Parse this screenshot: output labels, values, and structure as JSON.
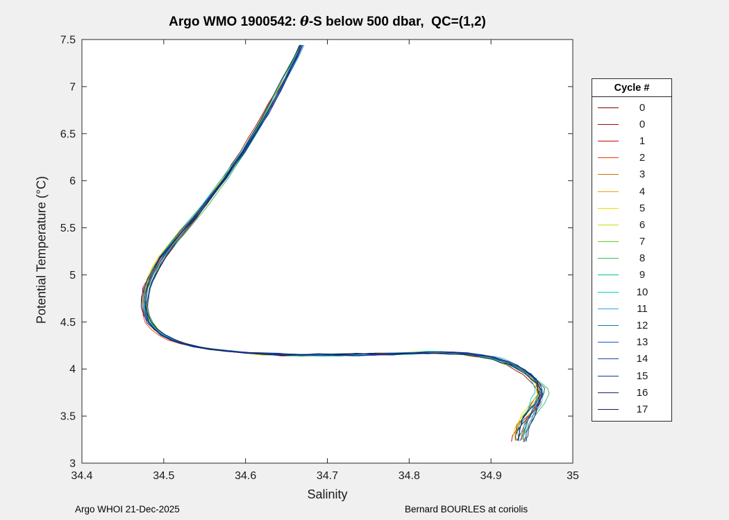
{
  "window": {
    "background": "#f0f0f0",
    "plot_background": "#ffffff"
  },
  "title_parts": {
    "prefix": "Argo WMO 1900542: ",
    "theta": "θ",
    "suffix": "-S below 500 dbar,  QC=(1,2)"
  },
  "footer": {
    "left": "Argo WHOI 21-Dec-2025",
    "right": "Bernard BOURLES at coriolis"
  },
  "chart_data": {
    "type": "line",
    "title": "Argo WMO 1900542: θ-S below 500 dbar,  QC=(1,2)",
    "xlabel": "Salinity",
    "ylabel": "Potential Temperature (°C)",
    "xlim": [
      34.4,
      35
    ],
    "ylim": [
      3,
      7.5
    ],
    "xticks": [
      34.4,
      34.5,
      34.6,
      34.7,
      34.8,
      34.9,
      35
    ],
    "xtick_labels": [
      "34.4",
      "34.5",
      "34.6",
      "34.7",
      "34.8",
      "34.9",
      "35"
    ],
    "yticks": [
      3,
      3.5,
      4,
      4.5,
      5,
      5.5,
      6,
      6.5,
      7,
      7.5
    ],
    "ytick_labels": [
      "3",
      "3.5",
      "4",
      "4.5",
      "5",
      "5.5",
      "6",
      "6.5",
      "7",
      "7.5"
    ],
    "grid": false,
    "axis_color": "#262626",
    "legend": {
      "title": "Cycle #",
      "position": "outside-right"
    },
    "series": [
      {
        "name": "0",
        "color": "#7f0000"
      },
      {
        "name": "0",
        "color": "#a80000"
      },
      {
        "name": "1",
        "color": "#d40000"
      },
      {
        "name": "2",
        "color": "#f43500"
      },
      {
        "name": "3",
        "color": "#cc7000"
      },
      {
        "name": "4",
        "color": "#eba300"
      },
      {
        "name": "5",
        "color": "#f2d500"
      },
      {
        "name": "6",
        "color": "#c8dc00"
      },
      {
        "name": "7",
        "color": "#5ecb1e"
      },
      {
        "name": "8",
        "color": "#2bbd57"
      },
      {
        "name": "9",
        "color": "#00bd93"
      },
      {
        "name": "10",
        "color": "#00cfcf"
      },
      {
        "name": "11",
        "color": "#29a8e0"
      },
      {
        "name": "12",
        "color": "#1379b5"
      },
      {
        "name": "13",
        "color": "#1355cf"
      },
      {
        "name": "14",
        "color": "#1f3da6"
      },
      {
        "name": "15",
        "color": "#19308a"
      },
      {
        "name": "16",
        "color": "#132470"
      },
      {
        "name": "17",
        "color": "#0d1956"
      }
    ],
    "jitter": {
      "salinity": 0.012,
      "theta": 0.015
    },
    "base_curve_points": [
      [
        34.668,
        7.44
      ],
      [
        34.662,
        7.32
      ],
      [
        34.655,
        7.2
      ],
      [
        34.648,
        7.08
      ],
      [
        34.641,
        6.96
      ],
      [
        34.633,
        6.84
      ],
      [
        34.625,
        6.71
      ],
      [
        34.616,
        6.58
      ],
      [
        34.607,
        6.45
      ],
      [
        34.597,
        6.31
      ],
      [
        34.586,
        6.17
      ],
      [
        34.575,
        6.03
      ],
      [
        34.563,
        5.89
      ],
      [
        34.551,
        5.75
      ],
      [
        34.538,
        5.61
      ],
      [
        34.524,
        5.47
      ],
      [
        34.511,
        5.33
      ],
      [
        34.498,
        5.19
      ],
      [
        34.49,
        5.07
      ],
      [
        34.484,
        4.96
      ],
      [
        34.479,
        4.86
      ],
      [
        34.477,
        4.76
      ],
      [
        34.476,
        4.66
      ],
      [
        34.478,
        4.57
      ],
      [
        34.482,
        4.49
      ],
      [
        34.489,
        4.42
      ],
      [
        34.498,
        4.36
      ],
      [
        34.51,
        4.31
      ],
      [
        34.524,
        4.27
      ],
      [
        34.54,
        4.235
      ],
      [
        34.558,
        4.21
      ],
      [
        34.578,
        4.19
      ],
      [
        34.6,
        4.172
      ],
      [
        34.622,
        4.16
      ],
      [
        34.645,
        4.152
      ],
      [
        34.668,
        4.148
      ],
      [
        34.69,
        4.15
      ],
      [
        34.712,
        4.15
      ],
      [
        34.734,
        4.152
      ],
      [
        34.756,
        4.158
      ],
      [
        34.778,
        4.163
      ],
      [
        34.8,
        4.168
      ],
      [
        34.82,
        4.175
      ],
      [
        34.838,
        4.178
      ],
      [
        34.854,
        4.172
      ],
      [
        34.869,
        4.16
      ],
      [
        34.883,
        4.145
      ],
      [
        34.896,
        4.125
      ],
      [
        34.908,
        4.098
      ],
      [
        34.919,
        4.066
      ],
      [
        34.929,
        4.03
      ],
      [
        34.938,
        3.99
      ],
      [
        34.946,
        3.945
      ],
      [
        34.952,
        3.895
      ],
      [
        34.957,
        3.845
      ],
      [
        34.96,
        3.79
      ],
      [
        34.961,
        3.735
      ],
      [
        34.959,
        3.68
      ],
      [
        34.956,
        3.625
      ],
      [
        34.952,
        3.57
      ],
      [
        34.948,
        3.515
      ],
      [
        34.944,
        3.46
      ],
      [
        34.941,
        3.405
      ],
      [
        34.938,
        3.35
      ],
      [
        34.936,
        3.295
      ],
      [
        34.935,
        3.24
      ]
    ]
  }
}
